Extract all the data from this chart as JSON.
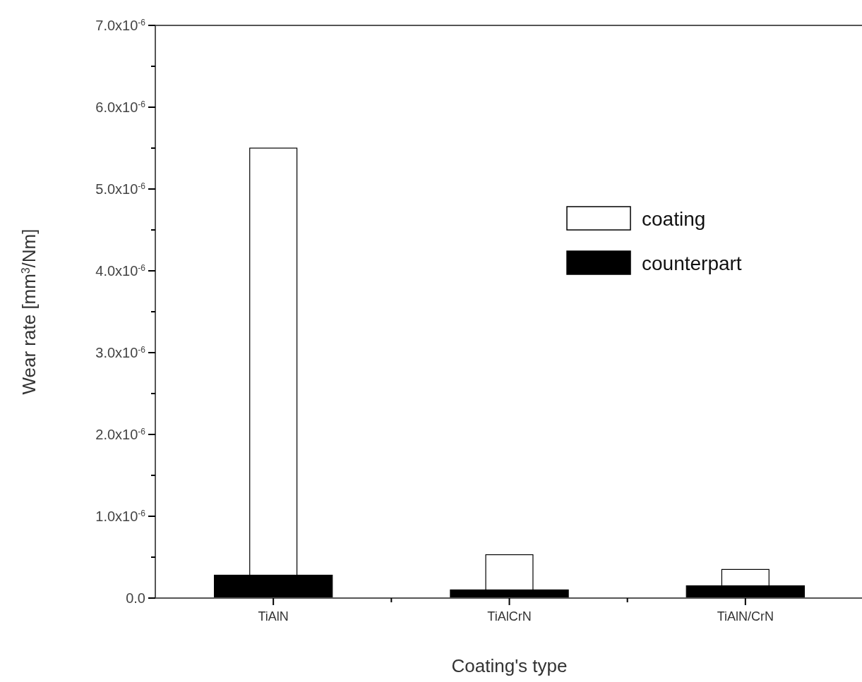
{
  "chart_data": {
    "type": "bar",
    "xlabel": "Coating's type",
    "ylabel": "Wear rate [mm$^{3}$/Nm]",
    "categories": [
      "TiAlN",
      "TiAlCrN",
      "TiAlN/CrN"
    ],
    "series": [
      {
        "name": "coating",
        "color": "#ffffff",
        "values": [
          5.5e-06,
          5.3e-07,
          3.5e-07
        ]
      },
      {
        "name": "counterpart",
        "color": "#000000",
        "values": [
          2.8e-07,
          1e-07,
          1.5e-07
        ]
      }
    ],
    "ylim": [
      0,
      7e-06
    ],
    "yticks": [
      {
        "value": 0,
        "label": "0.0"
      },
      {
        "value": 1e-06,
        "label": "1.0x10$^{-6}$"
      },
      {
        "value": 2e-06,
        "label": "2.0x10$^{-6}$"
      },
      {
        "value": 3e-06,
        "label": "3.0x10$^{-6}$"
      },
      {
        "value": 4e-06,
        "label": "4.0x10$^{-6}$"
      },
      {
        "value": 5e-06,
        "label": "5.0x10$^{-6}$"
      },
      {
        "value": 6e-06,
        "label": "6.0x10$^{-6}$"
      },
      {
        "value": 7e-06,
        "label": "7.0x10$^{-6}$"
      }
    ],
    "legend": "right",
    "grid": false
  }
}
